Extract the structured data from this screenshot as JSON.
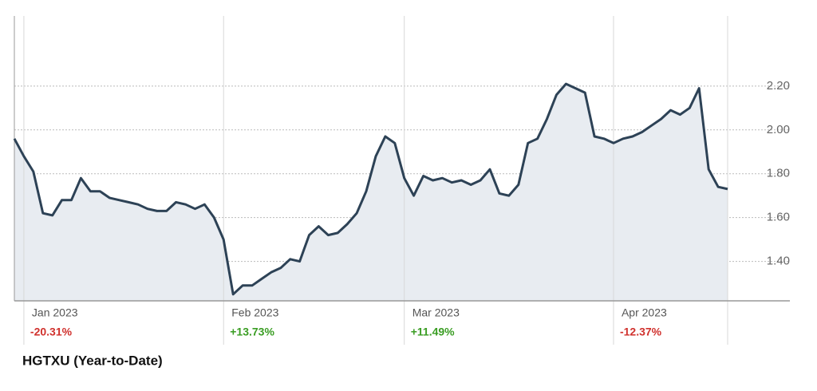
{
  "chart_data": {
    "type": "area",
    "caption": "HGTXU (Year-to-Date)",
    "categories": [
      null,
      "Jan 2023",
      null,
      null,
      null,
      null,
      null,
      null,
      null,
      null,
      null,
      null,
      null,
      null,
      null,
      null,
      null,
      null,
      null,
      null,
      null,
      null,
      "Feb 2023",
      null,
      null,
      null,
      null,
      null,
      null,
      null,
      null,
      null,
      null,
      null,
      null,
      null,
      null,
      null,
      null,
      null,
      null,
      "Mar 2023",
      null,
      null,
      null,
      null,
      null,
      null,
      null,
      null,
      null,
      null,
      null,
      null,
      null,
      null,
      null,
      null,
      null,
      null,
      null,
      null,
      null,
      "Apr 2023",
      null,
      null,
      null,
      null,
      null,
      null,
      null,
      null,
      null,
      null,
      null,
      null
    ],
    "values": [
      1.96,
      1.88,
      1.81,
      1.62,
      1.61,
      1.68,
      1.68,
      1.78,
      1.72,
      1.72,
      1.69,
      1.68,
      1.67,
      1.66,
      1.64,
      1.63,
      1.63,
      1.67,
      1.66,
      1.64,
      1.66,
      1.6,
      1.5,
      1.25,
      1.29,
      1.29,
      1.32,
      1.35,
      1.37,
      1.41,
      1.4,
      1.52,
      1.56,
      1.52,
      1.53,
      1.57,
      1.62,
      1.72,
      1.88,
      1.97,
      1.94,
      1.78,
      1.7,
      1.79,
      1.77,
      1.78,
      1.76,
      1.77,
      1.75,
      1.77,
      1.82,
      1.71,
      1.7,
      1.75,
      1.94,
      1.96,
      2.05,
      2.16,
      2.21,
      2.19,
      2.17,
      1.97,
      1.96,
      1.94,
      1.96,
      1.97,
      1.99,
      2.02,
      2.05,
      2.09,
      2.07,
      2.1,
      2.19,
      1.82,
      1.74,
      1.73
    ],
    "line_color": "#2d4256",
    "fill_color": "#e8ecf1",
    "period_changes": [
      {
        "text": "-20.31%",
        "color": "#d0312d"
      },
      {
        "text": "+13.73%",
        "color": "#3a9d23"
      },
      {
        "text": "+11.49%",
        "color": "#3a9d23"
      },
      {
        "text": "-12.37%",
        "color": "#d0312d"
      }
    ],
    "ylim": [
      1.22,
      2.52
    ],
    "yticks": [
      {
        "value": 1.4,
        "label": "1.40"
      },
      {
        "value": 1.6,
        "label": "1.60"
      },
      {
        "value": 1.8,
        "label": "1.80"
      },
      {
        "value": 2.0,
        "label": "2.00"
      },
      {
        "value": 2.2,
        "label": "2.20"
      }
    ],
    "grid": true
  }
}
